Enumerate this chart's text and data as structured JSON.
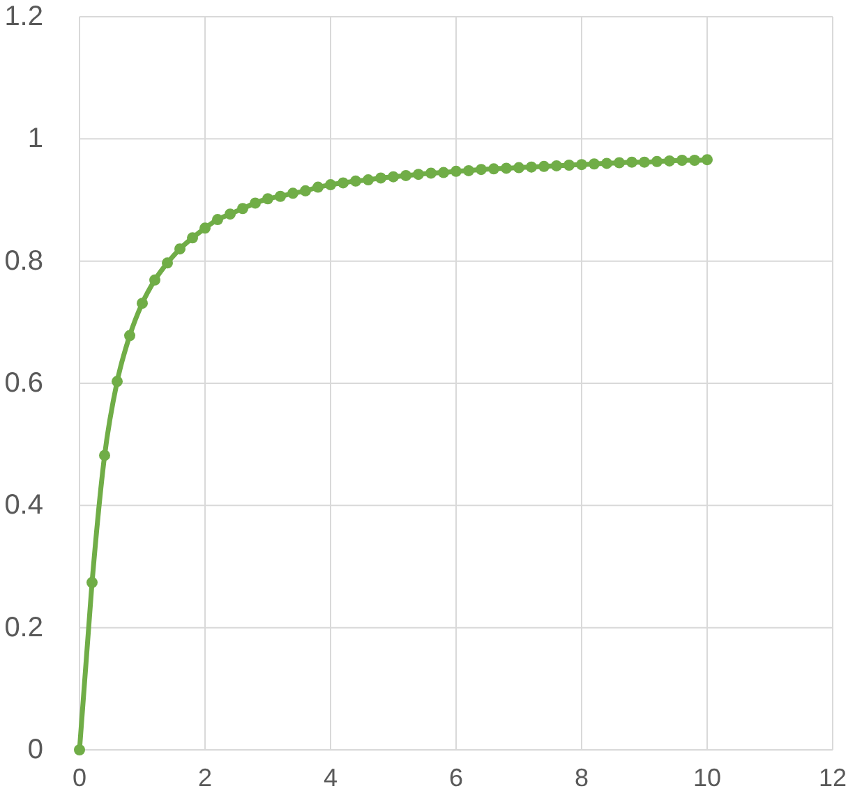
{
  "chart_data": {
    "type": "line",
    "x": [
      0,
      0.2,
      0.4,
      0.6,
      0.8,
      1,
      1.2,
      1.4,
      1.6,
      1.8,
      2,
      2.2,
      2.4,
      2.6,
      2.8,
      3,
      3.2,
      3.4,
      3.6,
      3.8,
      4,
      4.2,
      4.4,
      4.6,
      4.8,
      5,
      5.2,
      5.4,
      5.6,
      5.8,
      6,
      6.2,
      6.4,
      6.6,
      6.8,
      7,
      7.2,
      7.4,
      7.6,
      7.8,
      8,
      8.2,
      8.4,
      8.6,
      8.8,
      9,
      9.2,
      9.4,
      9.6,
      9.8,
      10
    ],
    "series": [
      {
        "color": "#70ad47",
        "values": [
          0,
          0.274,
          0.482,
          0.603,
          0.678,
          0.731,
          0.769,
          0.797,
          0.82,
          0.838,
          0.854,
          0.868,
          0.877,
          0.886,
          0.895,
          0.902,
          0.906,
          0.911,
          0.915,
          0.921,
          0.925,
          0.928,
          0.931,
          0.933,
          0.936,
          0.938,
          0.94,
          0.942,
          0.944,
          0.945,
          0.947,
          0.948,
          0.95,
          0.951,
          0.952,
          0.953,
          0.954,
          0.955,
          0.956,
          0.957,
          0.958,
          0.959,
          0.96,
          0.961,
          0.962,
          0.962,
          0.963,
          0.964,
          0.965,
          0.965,
          0.966
        ]
      }
    ],
    "xlim": [
      0,
      12
    ],
    "xticks": [
      0,
      2,
      4,
      6,
      8,
      10,
      12
    ],
    "ylim": [
      0,
      1.2
    ],
    "yticks": [
      0,
      0.2,
      0.4,
      0.6,
      0.8,
      1,
      1.2
    ],
    "grid": true,
    "marker": "circle",
    "line_style": "solid"
  }
}
